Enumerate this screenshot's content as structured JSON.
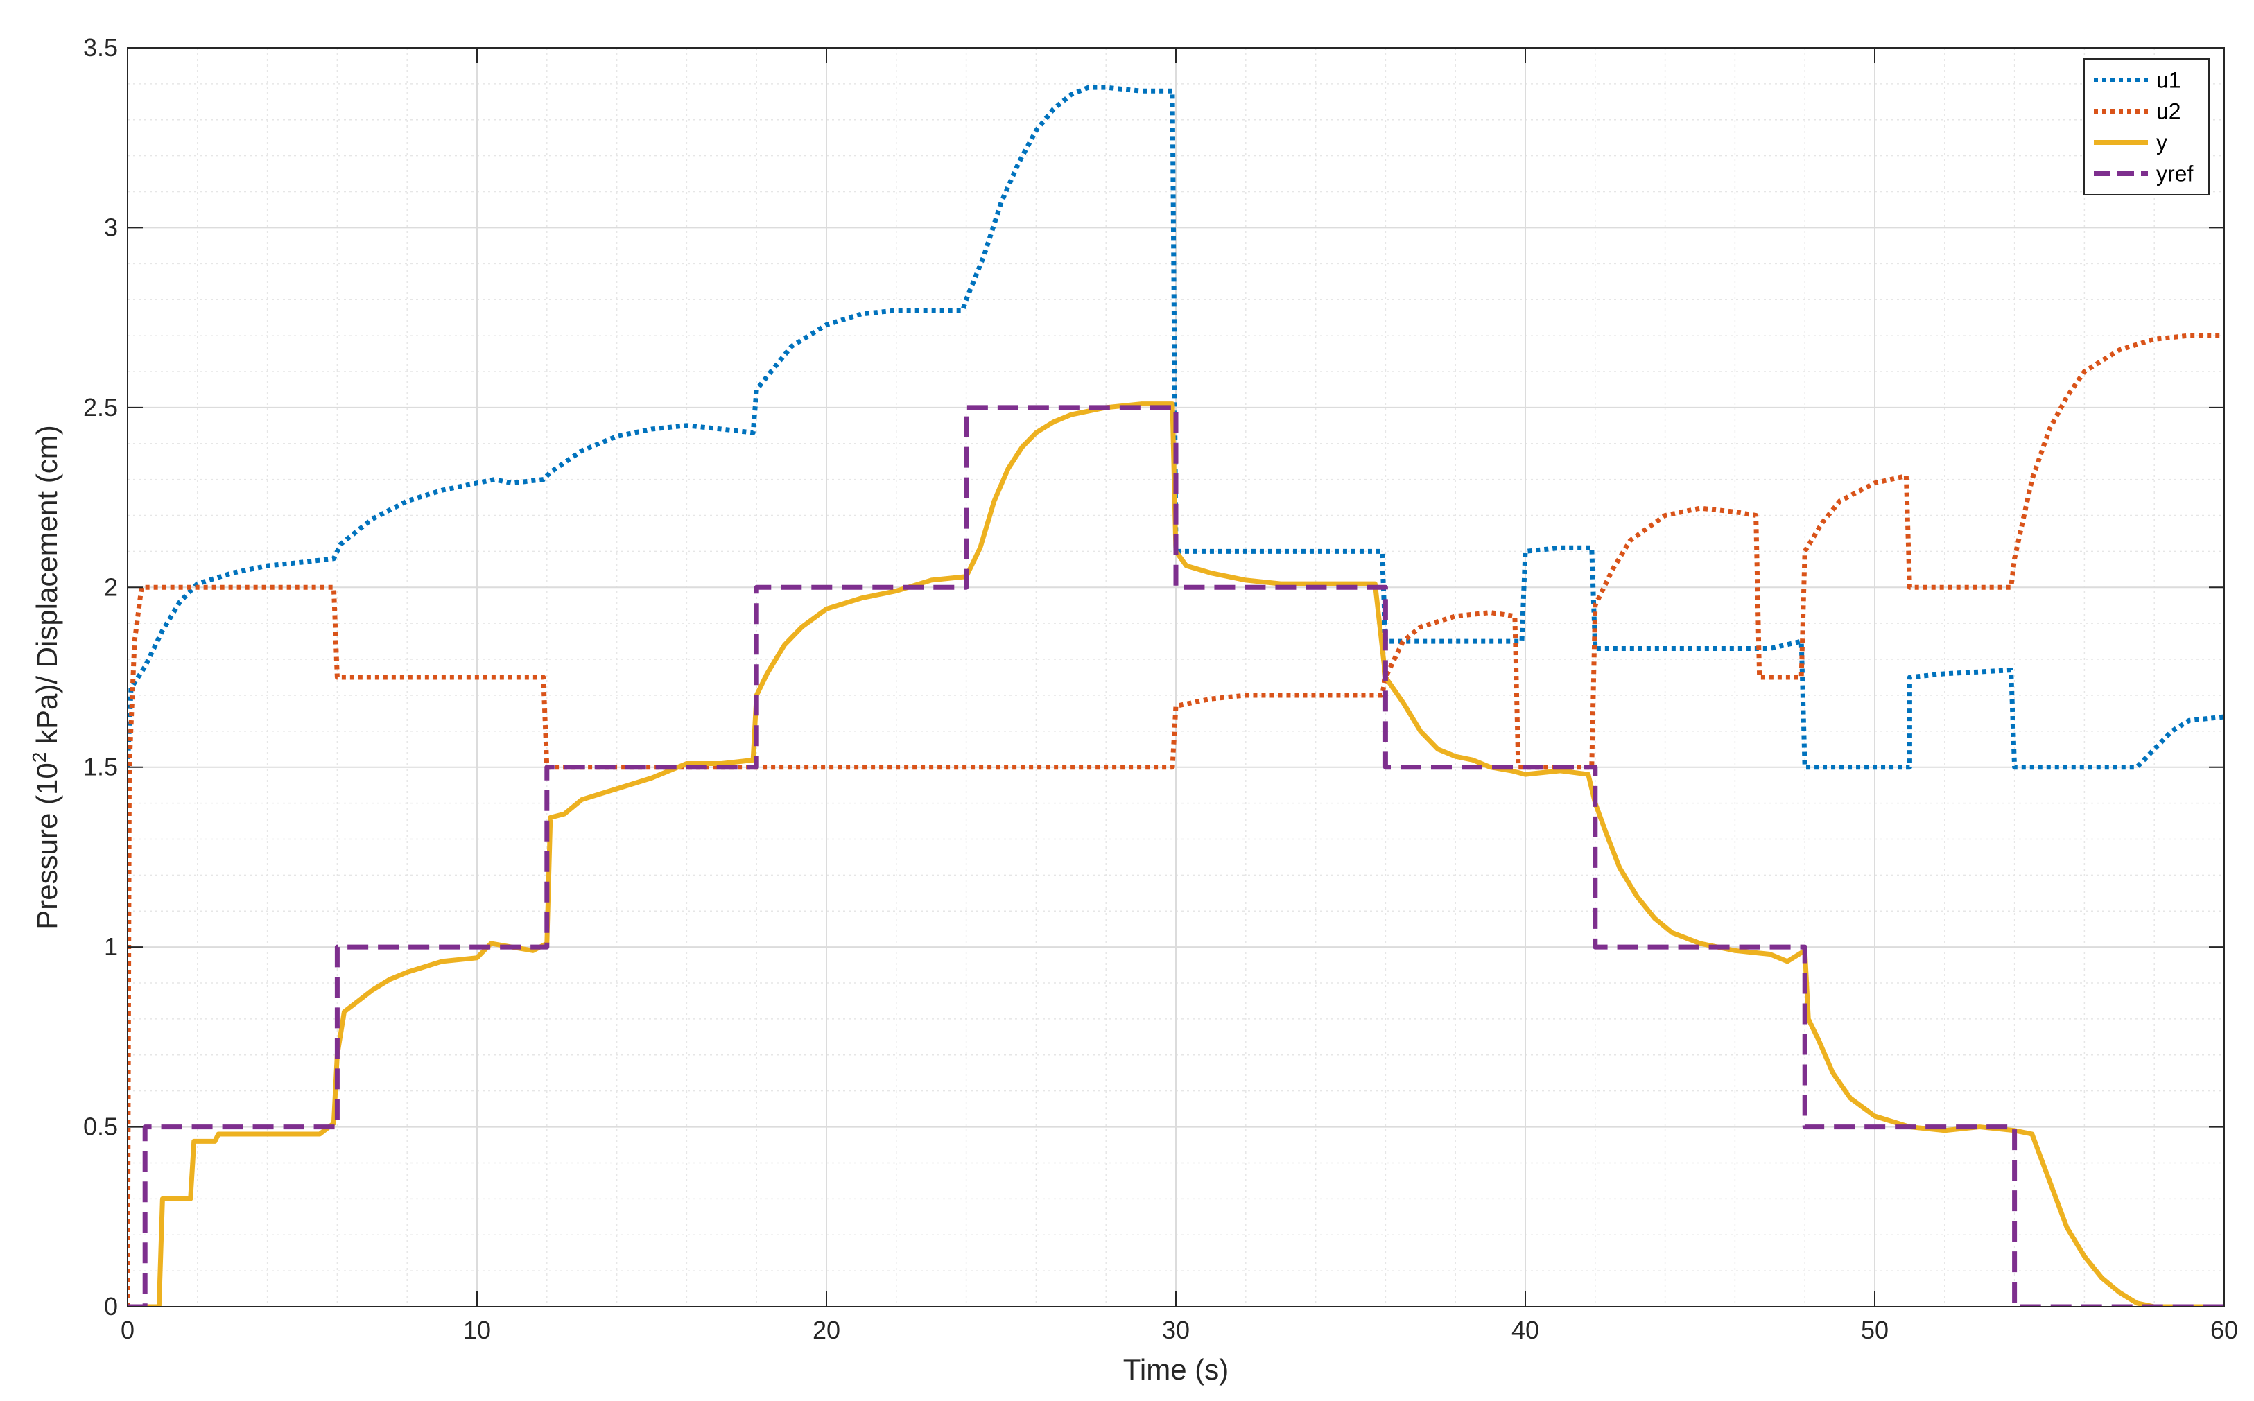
{
  "chart_data": {
    "type": "line",
    "xlabel": "Time (s)",
    "ylabel": {
      "prefix": "Pressure (10",
      "superscript": "2",
      "suffix": " kPa)/ Displacement (cm)"
    },
    "xlim": [
      0,
      60
    ],
    "ylim": [
      0,
      3.5
    ],
    "x_ticks": [
      0,
      10,
      20,
      30,
      40,
      50,
      60
    ],
    "y_ticks": [
      0,
      0.5,
      1,
      1.5,
      2,
      2.5,
      3,
      3.5
    ],
    "grid": true,
    "minor_grid": true,
    "legend_position": "top-right",
    "series": [
      {
        "name": "u1",
        "color": "#0072BD",
        "style": "dotted",
        "points": [
          [
            0,
            1.5
          ],
          [
            0.1,
            1.72
          ],
          [
            0.5,
            1.78
          ],
          [
            1,
            1.88
          ],
          [
            1.5,
            1.96
          ],
          [
            2,
            2.01
          ],
          [
            3,
            2.04
          ],
          [
            4,
            2.06
          ],
          [
            5,
            2.07
          ],
          [
            5.9,
            2.08
          ],
          [
            6.1,
            2.12
          ],
          [
            7,
            2.19
          ],
          [
            8,
            2.24
          ],
          [
            9,
            2.27
          ],
          [
            10,
            2.29
          ],
          [
            10.5,
            2.3
          ],
          [
            11,
            2.29
          ],
          [
            11.9,
            2.3
          ],
          [
            12.1,
            2.32
          ],
          [
            13,
            2.38
          ],
          [
            14,
            2.42
          ],
          [
            15,
            2.44
          ],
          [
            16,
            2.45
          ],
          [
            17,
            2.44
          ],
          [
            17.9,
            2.43
          ],
          [
            18,
            2.55
          ],
          [
            18.5,
            2.61
          ],
          [
            19,
            2.67
          ],
          [
            20,
            2.73
          ],
          [
            21,
            2.76
          ],
          [
            22,
            2.77
          ],
          [
            23.9,
            2.77
          ],
          [
            24,
            2.8
          ],
          [
            24.5,
            2.92
          ],
          [
            25,
            3.07
          ],
          [
            25.5,
            3.18
          ],
          [
            26,
            3.27
          ],
          [
            26.5,
            3.33
          ],
          [
            27,
            3.37
          ],
          [
            27.5,
            3.39
          ],
          [
            28,
            3.39
          ],
          [
            29,
            3.38
          ],
          [
            29.9,
            3.38
          ],
          [
            30,
            2.1
          ],
          [
            35.9,
            2.1
          ],
          [
            36,
            1.85
          ],
          [
            39.9,
            1.85
          ],
          [
            40,
            2.1
          ],
          [
            41,
            2.11
          ],
          [
            41.9,
            2.11
          ],
          [
            42,
            1.83
          ],
          [
            47,
            1.83
          ],
          [
            47.9,
            1.85
          ],
          [
            48,
            1.5
          ],
          [
            51,
            1.5
          ],
          [
            51,
            1.75
          ],
          [
            52,
            1.76
          ],
          [
            53.9,
            1.77
          ],
          [
            54,
            1.5
          ],
          [
            57.5,
            1.5
          ],
          [
            58,
            1.55
          ],
          [
            58.5,
            1.6
          ],
          [
            59,
            1.63
          ],
          [
            60,
            1.64
          ]
        ]
      },
      {
        "name": "u2",
        "color": "#D95319",
        "style": "dotted",
        "points": [
          [
            0,
            0
          ],
          [
            0.05,
            1.5
          ],
          [
            0.2,
            1.85
          ],
          [
            0.4,
            2.0
          ],
          [
            5.9,
            2.0
          ],
          [
            6,
            1.75
          ],
          [
            11.9,
            1.75
          ],
          [
            12,
            1.5
          ],
          [
            29.9,
            1.5
          ],
          [
            30,
            1.67
          ],
          [
            31,
            1.69
          ],
          [
            32,
            1.7
          ],
          [
            35.9,
            1.7
          ],
          [
            36,
            1.75
          ],
          [
            36.5,
            1.85
          ],
          [
            37,
            1.89
          ],
          [
            38,
            1.92
          ],
          [
            39,
            1.93
          ],
          [
            39.7,
            1.92
          ],
          [
            39.8,
            1.5
          ],
          [
            41.9,
            1.5
          ],
          [
            42,
            1.95
          ],
          [
            42.5,
            2.05
          ],
          [
            43,
            2.13
          ],
          [
            44,
            2.2
          ],
          [
            45,
            2.22
          ],
          [
            46,
            2.21
          ],
          [
            46.6,
            2.2
          ],
          [
            46.7,
            1.75
          ],
          [
            47.9,
            1.75
          ],
          [
            48,
            2.1
          ],
          [
            48.5,
            2.18
          ],
          [
            49,
            2.24
          ],
          [
            50,
            2.29
          ],
          [
            50.9,
            2.31
          ],
          [
            51,
            2.0
          ],
          [
            53.9,
            2.0
          ],
          [
            54,
            2.08
          ],
          [
            54.5,
            2.3
          ],
          [
            55,
            2.44
          ],
          [
            55.5,
            2.53
          ],
          [
            56,
            2.6
          ],
          [
            57,
            2.66
          ],
          [
            58,
            2.69
          ],
          [
            59,
            2.7
          ],
          [
            60,
            2.7
          ]
        ]
      },
      {
        "name": "y",
        "color": "#EDB120",
        "style": "solid",
        "points": [
          [
            0,
            0
          ],
          [
            0.9,
            0
          ],
          [
            1,
            0.3
          ],
          [
            1.8,
            0.3
          ],
          [
            1.9,
            0.46
          ],
          [
            2.5,
            0.46
          ],
          [
            2.6,
            0.48
          ],
          [
            5.5,
            0.48
          ],
          [
            5.9,
            0.51
          ],
          [
            6,
            0.7
          ],
          [
            6.2,
            0.82
          ],
          [
            6.6,
            0.85
          ],
          [
            7,
            0.88
          ],
          [
            7.5,
            0.91
          ],
          [
            8,
            0.93
          ],
          [
            9,
            0.96
          ],
          [
            10,
            0.97
          ],
          [
            10.4,
            1.01
          ],
          [
            11,
            1.0
          ],
          [
            11.6,
            0.99
          ],
          [
            12,
            1.01
          ],
          [
            12.1,
            1.36
          ],
          [
            12.5,
            1.37
          ],
          [
            13,
            1.41
          ],
          [
            14,
            1.44
          ],
          [
            15,
            1.47
          ],
          [
            16,
            1.51
          ],
          [
            17,
            1.51
          ],
          [
            17.9,
            1.52
          ],
          [
            18,
            1.7
          ],
          [
            18.3,
            1.76
          ],
          [
            18.8,
            1.84
          ],
          [
            19.3,
            1.89
          ],
          [
            20,
            1.94
          ],
          [
            21,
            1.97
          ],
          [
            22,
            1.99
          ],
          [
            23,
            2.02
          ],
          [
            24,
            2.03
          ],
          [
            24.4,
            2.11
          ],
          [
            24.8,
            2.24
          ],
          [
            25.2,
            2.33
          ],
          [
            25.6,
            2.39
          ],
          [
            26,
            2.43
          ],
          [
            26.5,
            2.46
          ],
          [
            27,
            2.48
          ],
          [
            28,
            2.5
          ],
          [
            29,
            2.51
          ],
          [
            29.9,
            2.51
          ],
          [
            30,
            2.1
          ],
          [
            30.3,
            2.06
          ],
          [
            31,
            2.04
          ],
          [
            32,
            2.02
          ],
          [
            33,
            2.01
          ],
          [
            35.7,
            2.01
          ],
          [
            36,
            1.75
          ],
          [
            36.5,
            1.68
          ],
          [
            37,
            1.6
          ],
          [
            37.5,
            1.55
          ],
          [
            38,
            1.53
          ],
          [
            38.5,
            1.52
          ],
          [
            39,
            1.5
          ],
          [
            39.6,
            1.49
          ],
          [
            40,
            1.48
          ],
          [
            41,
            1.49
          ],
          [
            41.8,
            1.48
          ],
          [
            42,
            1.4
          ],
          [
            42.3,
            1.32
          ],
          [
            42.7,
            1.22
          ],
          [
            43.2,
            1.14
          ],
          [
            43.7,
            1.08
          ],
          [
            44.2,
            1.04
          ],
          [
            45,
            1.01
          ],
          [
            46,
            0.99
          ],
          [
            47,
            0.98
          ],
          [
            47.5,
            0.96
          ],
          [
            48,
            0.99
          ],
          [
            48.1,
            0.8
          ],
          [
            48.4,
            0.74
          ],
          [
            48.8,
            0.65
          ],
          [
            49.3,
            0.58
          ],
          [
            50,
            0.53
          ],
          [
            51,
            0.5
          ],
          [
            52,
            0.49
          ],
          [
            53,
            0.5
          ],
          [
            54,
            0.49
          ],
          [
            54.5,
            0.48
          ],
          [
            55,
            0.35
          ],
          [
            55.5,
            0.22
          ],
          [
            56,
            0.14
          ],
          [
            56.5,
            0.08
          ],
          [
            57,
            0.04
          ],
          [
            57.5,
            0.01
          ],
          [
            58,
            0
          ],
          [
            60,
            0
          ]
        ]
      },
      {
        "name": "yref",
        "color": "#7E2F8E",
        "style": "dashed",
        "points": [
          [
            0,
            0
          ],
          [
            0.5,
            0
          ],
          [
            0.5,
            0.5
          ],
          [
            6,
            0.5
          ],
          [
            6,
            1
          ],
          [
            12,
            1
          ],
          [
            12,
            1.5
          ],
          [
            18,
            1.5
          ],
          [
            18,
            2
          ],
          [
            24,
            2
          ],
          [
            24,
            2.5
          ],
          [
            30,
            2.5
          ],
          [
            30,
            2
          ],
          [
            36,
            2
          ],
          [
            36,
            1.5
          ],
          [
            42,
            1.5
          ],
          [
            42,
            1
          ],
          [
            48,
            1
          ],
          [
            48,
            0.5
          ],
          [
            54,
            0.5
          ],
          [
            54,
            0
          ],
          [
            60,
            0
          ]
        ]
      }
    ]
  }
}
